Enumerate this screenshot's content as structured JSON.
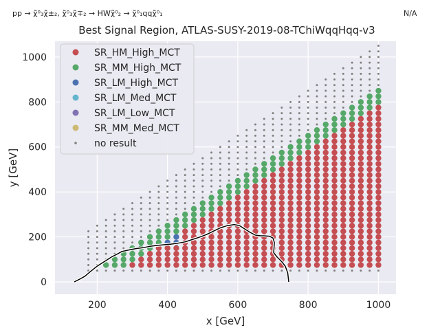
{
  "header": {
    "process": "pp → χ̃⁰₃χ̃±₂, χ̃⁰₃χ̃∓₂ → HWχ̃⁰₂ → χ̃⁰₁qqχ̃⁰₁",
    "status": "N/A"
  },
  "chart_data": {
    "type": "scatter",
    "title": "Best Signal Region, ATLAS-SUSY-2019-08-TChiWqqHqq-v3",
    "xlabel": "x [GeV]",
    "ylabel": "y [GeV]",
    "xlim": [
      80,
      1050
    ],
    "ylim": [
      -55,
      1070
    ],
    "xticks": [
      200,
      400,
      600,
      800,
      1000
    ],
    "yticks": [
      0,
      200,
      400,
      600,
      800,
      1000
    ],
    "grid": true,
    "legend_position": "top-left",
    "colors": {
      "SR_HM_High_MCT": "#c44e52",
      "SR_MM_High_MCT": "#55a868",
      "SR_LM_High_MCT": "#4c72b0",
      "SR_LM_Med_MCT": "#64b5cd",
      "SR_LM_Low_MCT": "#8172b3",
      "SR_MM_Med_MCT": "#ccb974",
      "no result": "#808080",
      "contour": "#000000"
    },
    "series": [
      {
        "name": "SR_HM_High_MCT",
        "marker": "circle"
      },
      {
        "name": "SR_MM_High_MCT",
        "marker": "circle"
      },
      {
        "name": "SR_LM_High_MCT",
        "marker": "circle"
      },
      {
        "name": "SR_LM_Med_MCT",
        "marker": "circle"
      },
      {
        "name": "SR_LM_Low_MCT",
        "marker": "circle"
      },
      {
        "name": "SR_MM_Med_MCT",
        "marker": "circle"
      },
      {
        "name": "no result",
        "marker": "dot"
      }
    ],
    "grid_points": {
      "x_start": 175,
      "x_step": 12.5,
      "x_end": 1000,
      "y_step": 12.5,
      "filled_min_y": 75,
      "filled_max_offset": 150,
      "noresult_max_offset": 50
    },
    "contour": {
      "x": [
        135,
        150,
        165,
        180,
        200,
        220,
        240,
        255,
        270,
        290,
        310,
        330,
        350,
        370,
        390,
        410,
        430,
        450,
        470,
        490,
        510,
        530,
        550,
        570,
        590,
        605,
        620,
        635,
        650,
        665,
        675,
        690,
        700,
        704,
        702,
        712,
        725,
        735,
        742,
        745
      ],
      "y": [
        0,
        12,
        25,
        45,
        70,
        90,
        110,
        122,
        135,
        142,
        148,
        152,
        158,
        162,
        165,
        168,
        172,
        178,
        188,
        198,
        210,
        225,
        240,
        250,
        255,
        250,
        235,
        220,
        208,
        205,
        205,
        203,
        195,
        175,
        130,
        110,
        90,
        70,
        40,
        0
      ]
    }
  }
}
